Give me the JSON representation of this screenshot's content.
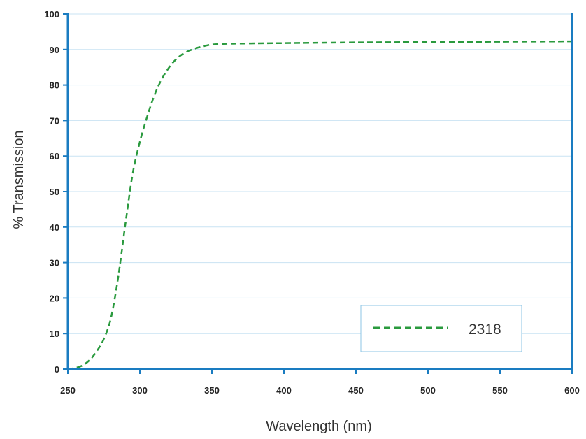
{
  "chart_data": {
    "type": "line",
    "title": "",
    "xlabel": "Wavelength (nm)",
    "ylabel": "% Transmission",
    "xlim": [
      250,
      600
    ],
    "ylim": [
      0,
      100
    ],
    "x_ticks": [
      250,
      300,
      350,
      400,
      450,
      500,
      550,
      600
    ],
    "y_ticks": [
      0,
      10,
      20,
      30,
      40,
      50,
      60,
      70,
      80,
      90,
      100
    ],
    "grid": {
      "horizontal": true,
      "vertical": false
    },
    "legend": {
      "position": "bottom-right"
    },
    "colors": {
      "axis": "#1a7cc1",
      "grid": "#c9e3f3",
      "legend_border": "#8cc4e4"
    },
    "series": [
      {
        "name": "2318",
        "color": "#2a9a3e",
        "dash": "dashed",
        "x": [
          250,
          255,
          260,
          265,
          270,
          275,
          280,
          285,
          290,
          295,
          300,
          305,
          310,
          315,
          320,
          325,
          330,
          335,
          340,
          345,
          350,
          360,
          375,
          400,
          450,
          500,
          550,
          600
        ],
        "y": [
          0,
          0.3,
          1,
          2.5,
          5,
          8.5,
          14.5,
          26,
          41,
          55,
          64,
          71,
          77,
          81.5,
          84.8,
          87.2,
          88.8,
          89.8,
          90.5,
          91,
          91.4,
          91.6,
          91.7,
          91.8,
          92,
          92.1,
          92.2,
          92.3
        ]
      }
    ]
  }
}
